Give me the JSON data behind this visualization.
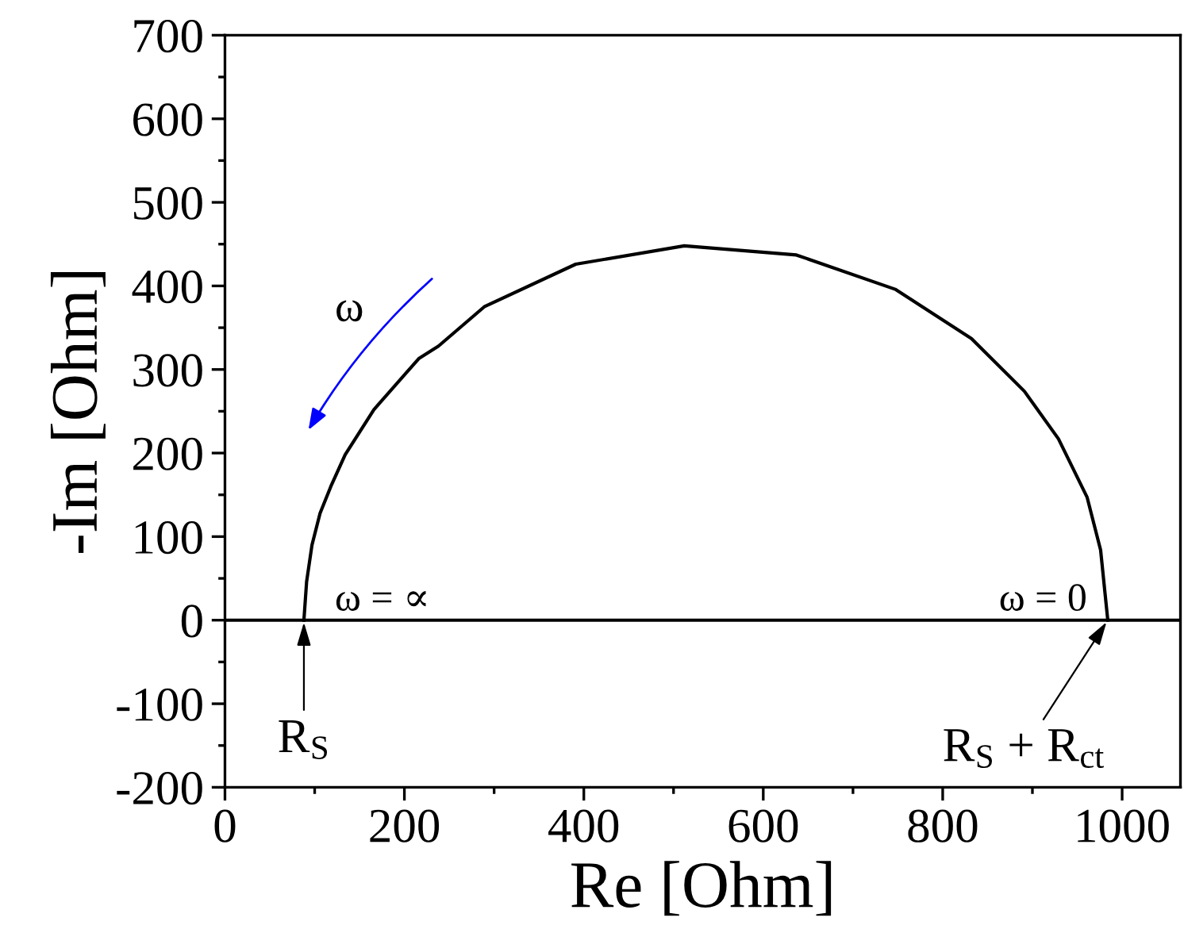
{
  "chart_data": {
    "type": "line",
    "xlabel": "Re [Ohm]",
    "ylabel": "-Im [Ohm]",
    "x": [
      88,
      91,
      97,
      106,
      118,
      134,
      166,
      216,
      238,
      289,
      391,
      512,
      637,
      747,
      832,
      891,
      929,
      961,
      976,
      984
    ],
    "series": [
      {
        "color": "#000000",
        "values": [
          0,
          46,
          90,
          128,
          160,
          198,
          252,
          313,
          328,
          375,
          426,
          448,
          437,
          396,
          337,
          274,
          217,
          147,
          84,
          0
        ]
      }
    ],
    "xlim": [
      0,
      1065
    ],
    "ylim": [
      -200,
      700
    ],
    "xticks": [
      0,
      {
        "value": 100,
        "label": null
      },
      200,
      {
        "value": 300,
        "label": null
      },
      400,
      {
        "value": 500,
        "label": null
      },
      600,
      {
        "value": 700,
        "label": null
      },
      800,
      {
        "value": 900,
        "label": null
      },
      1000
    ],
    "yticks": [
      -200,
      {
        "value": -150,
        "label": null
      },
      -100,
      {
        "value": -50,
        "label": null
      },
      0,
      {
        "value": 50,
        "label": null
      },
      100,
      {
        "value": 150,
        "label": null
      },
      200,
      {
        "value": 250,
        "label": null
      },
      300,
      {
        "value": 350,
        "label": null
      },
      400,
      {
        "value": 450,
        "label": null
      },
      500,
      {
        "value": 550,
        "label": null
      },
      600,
      {
        "value": 650,
        "label": null
      },
      700
    ],
    "ref_lines": [
      {
        "axis": "y",
        "value": 0,
        "color": "#000000"
      }
    ],
    "annotations": [
      "ω",
      "ω = ∝",
      "ω = 0",
      {
        "text": "R$_{S}$",
        "x": 88,
        "y": 0
      },
      {
        "text": "R$_{S}$ + R$_{ct}$",
        "x": 984,
        "y": 0
      }
    ],
    "grid": false,
    "legend": false,
    "marker": "none",
    "line_style": "solid"
  }
}
